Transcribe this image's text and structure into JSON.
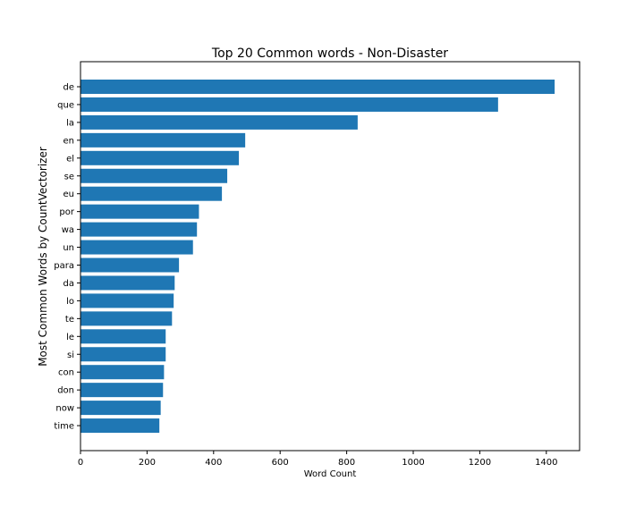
{
  "chart_data": {
    "type": "bar",
    "orientation": "horizontal",
    "title": "Top 20 Common words - Non-Disaster",
    "xlabel": "Word Count",
    "ylabel": "Most Common Words by CountVectorizer",
    "categories": [
      "de",
      "que",
      "la",
      "en",
      "el",
      "se",
      "eu",
      "por",
      "wa",
      "un",
      "para",
      "da",
      "lo",
      "te",
      "le",
      "si",
      "con",
      "don",
      "now",
      "time"
    ],
    "values": [
      1425,
      1255,
      833,
      495,
      476,
      441,
      425,
      356,
      350,
      338,
      296,
      283,
      280,
      275,
      256,
      256,
      251,
      248,
      241,
      237
    ],
    "xlim": [
      0,
      1500
    ],
    "xticks": [
      0,
      200,
      400,
      600,
      800,
      1000,
      1200,
      1400
    ],
    "grid": false,
    "legend": "none",
    "bar_color": "#1f77b4"
  }
}
